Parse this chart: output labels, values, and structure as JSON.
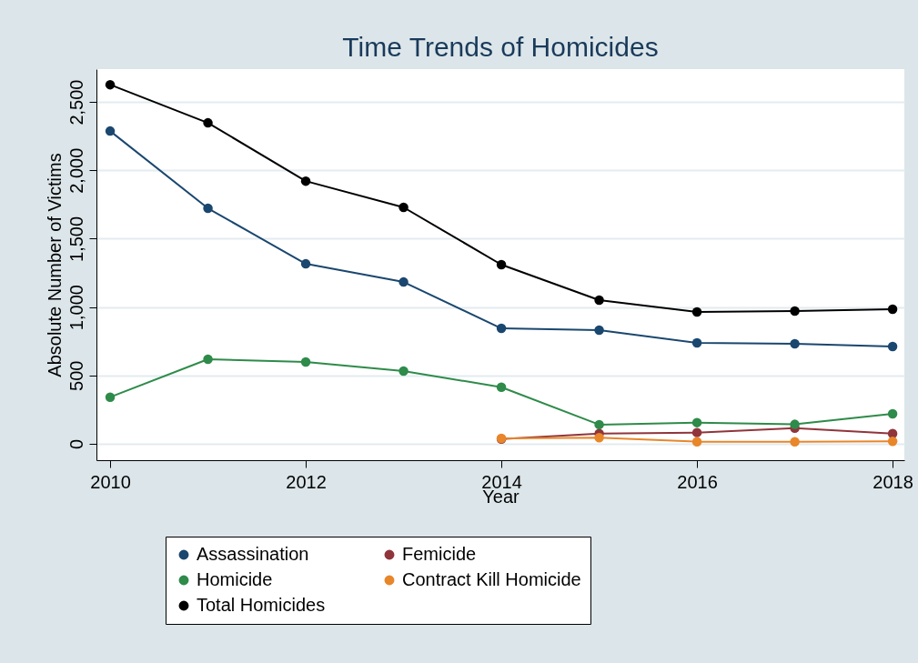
{
  "chart_data": {
    "type": "line",
    "title": "Time Trends of Homicides",
    "xlabel": "Year",
    "ylabel": "Absolute Number of Victims",
    "x": [
      2010,
      2011,
      2012,
      2013,
      2014,
      2015,
      2016,
      2017,
      2018
    ],
    "xlim": [
      2009.86,
      2018.12
    ],
    "xticks": [
      2010,
      2012,
      2014,
      2016,
      2018
    ],
    "ylim": [
      -120,
      2740
    ],
    "yticks": [
      0,
      500,
      {
        "value": 1000,
        "label": "1,000"
      },
      {
        "value": 1500,
        "label": "1,500"
      },
      {
        "value": 2000,
        "label": "2,000"
      },
      {
        "value": 2500,
        "label": "2,500"
      }
    ],
    "grid": "y",
    "legend": "bottom",
    "marker": "circle",
    "line_style": "solid",
    "series": [
      {
        "name": "Assassination",
        "color": "#1a476f",
        "values": [
          2287,
          1722,
          1316,
          1183,
          844,
          831,
          738,
          731,
          711
        ]
      },
      {
        "name": "Femicide",
        "color": "#90353b",
        "values": [
          null,
          null,
          null,
          null,
          35,
          75,
          82,
          115,
          75
        ]
      },
      {
        "name": "Homicide",
        "color": "#2e8b4a",
        "values": [
          341,
          618,
          598,
          532,
          414,
          140,
          155,
          142,
          219
        ]
      },
      {
        "name": "Contract Kill Homicide",
        "color": "#e8862a",
        "values": [
          null,
          null,
          null,
          null,
          40,
          45,
          15,
          15,
          18
        ]
      },
      {
        "name": "Total Homicides",
        "color": "#000000",
        "values": [
          2626,
          2347,
          1921,
          1729,
          1310,
          1051,
          964,
          971,
          984
        ]
      }
    ]
  }
}
